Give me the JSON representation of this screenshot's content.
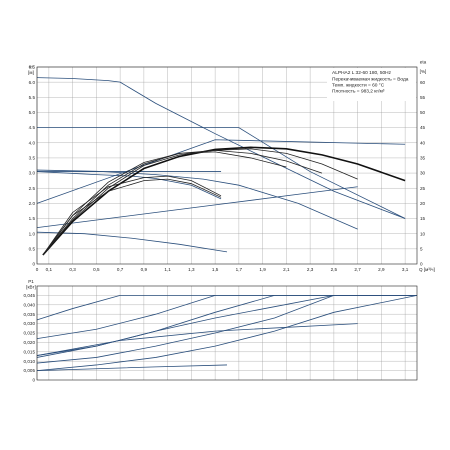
{
  "chart_data": [
    {
      "type": "line",
      "info": {
        "model": "ALPHA2 L 32-60 180, 50Hz",
        "lines": [
          "Перекачиваемая жидкость = Вода",
          "Темп. жидкости = 60 °C",
          "Плотность = 983,2 кг/м³"
        ]
      },
      "xlabel": "Q",
      "xunit": "[м³/ч]",
      "xlim": [
        0,
        3.2
      ],
      "x_ticks": [
        "0",
        "0,1",
        "0,3",
        "0,5",
        "0,7",
        "0,9",
        "1,1",
        "1,3",
        "1,5",
        "1,7",
        "1,9",
        "2,1",
        "2,3",
        "2,5",
        "2,7",
        "2,9",
        "3,1",
        "Q [м³/ч]"
      ],
      "ylabel_left": "H",
      "yunit_left": "[м]",
      "ylim_left": [
        0,
        6.5
      ],
      "y_ticks_left": [
        "0",
        "0.5",
        "1.0",
        "1.5",
        "2.0",
        "2.5",
        "3.0",
        "3.5",
        "4.0",
        "4.5",
        "5.0",
        "5.5",
        "6.0",
        "6.5"
      ],
      "ylabel_right": "eta",
      "yunit_right": "[%]",
      "ylim_right": [
        0,
        65
      ],
      "y_ticks_right": [
        "0",
        "5",
        "10",
        "15",
        "20",
        "25",
        "30",
        "35",
        "40",
        "45",
        "50",
        "55",
        "60"
      ],
      "grid": true,
      "head_series": [
        {
          "x": [
            0,
            0.3,
            0.6,
            0.7,
            1.0,
            1.5,
            2.0,
            2.5,
            3.1
          ],
          "y": [
            6.15,
            6.12,
            6.05,
            6.0,
            5.3,
            4.3,
            3.35,
            2.4,
            1.5
          ]
        },
        {
          "x": [
            0,
            1.0,
            1.7,
            2.3,
            3.1
          ],
          "y": [
            4.5,
            4.5,
            4.5,
            3.05,
            1.5
          ]
        },
        {
          "x": [
            0,
            0.5,
            1.0,
            1.4,
            1.7,
            2.2,
            2.7
          ],
          "y": [
            3.1,
            3.06,
            2.95,
            2.8,
            2.6,
            2.0,
            1.15
          ]
        },
        {
          "x": [
            0,
            0.5,
            0.8,
            1.0,
            1.3,
            1.55
          ],
          "y": [
            3.05,
            2.95,
            2.9,
            2.82,
            2.6,
            2.15
          ]
        },
        {
          "x": [
            0,
            0.4,
            0.8,
            1.2,
            1.6
          ],
          "y": [
            1.05,
            1.0,
            0.85,
            0.65,
            0.4
          ]
        },
        {
          "x": [
            0,
            0.5,
            1.0,
            1.55
          ],
          "y": [
            3.05,
            3.05,
            3.05,
            3.05
          ]
        }
      ],
      "efficiency_series": [
        {
          "x": [
            0.05,
            0.3,
            0.6,
            0.9,
            1.2,
            1.5,
            1.8,
            2.1,
            2.4,
            2.7,
            3.1
          ],
          "y": [
            3,
            14,
            24,
            31.5,
            35.5,
            37.8,
            38.5,
            38,
            36,
            33,
            27.5
          ]
        },
        {
          "x": [
            0.05,
            0.3,
            0.6,
            0.9,
            1.2,
            1.5,
            1.8,
            2.1,
            2.4,
            2.7
          ],
          "y": [
            3,
            14.5,
            25,
            32.5,
            36,
            37.5,
            38,
            36.5,
            33,
            28
          ]
        },
        {
          "x": [
            0.05,
            0.3,
            0.6,
            0.9,
            1.2,
            1.5,
            1.8,
            2.1,
            2.4
          ],
          "y": [
            3,
            15,
            26,
            33,
            36.5,
            37.5,
            36.5,
            34,
            30
          ]
        },
        {
          "x": [
            0.05,
            0.3,
            0.6,
            0.9,
            1.2,
            1.5,
            1.8,
            2.1
          ],
          "y": [
            3,
            16,
            27,
            33.5,
            36.5,
            37,
            35,
            32
          ]
        },
        {
          "x": [
            0.05,
            0.3,
            0.6,
            0.9,
            1.1,
            1.3,
            1.55
          ],
          "y": [
            3,
            17,
            25.5,
            28.5,
            29,
            27.5,
            22.5
          ]
        },
        {
          "x": [
            0.05,
            0.3,
            0.6,
            0.9,
            1.1,
            1.3,
            1.55
          ],
          "y": [
            3,
            16,
            24,
            27.5,
            28,
            26.5,
            22
          ]
        }
      ],
      "head_efficiency_series": [
        {
          "x": [
            0,
            1.5,
            3.1
          ],
          "y": [
            2.0,
            4.1,
            3.95
          ]
        },
        {
          "x": [
            0,
            0.7,
            1.5,
            2.2,
            2.7
          ],
          "y": [
            1.2,
            1.55,
            1.95,
            2.3,
            2.55
          ]
        }
      ]
    },
    {
      "type": "line",
      "ylabel": "P1",
      "yunit": "[кВт]",
      "ylim": [
        0,
        0.05
      ],
      "y_ticks": [
        "0",
        "0,005",
        "0,010",
        "0,015",
        "0,020",
        "0,025",
        "0,030",
        "0,035",
        "0,040",
        "0,045"
      ],
      "xlim": [
        0,
        3.2
      ],
      "grid": true,
      "series": [
        {
          "x": [
            0,
            0.3,
            0.7,
            3.2
          ],
          "y": [
            0.032,
            0.038,
            0.045,
            0.045
          ]
        },
        {
          "x": [
            0,
            0.5,
            1.0,
            1.5,
            3.2
          ],
          "y": [
            0.022,
            0.027,
            0.035,
            0.045,
            0.045
          ]
        },
        {
          "x": [
            0,
            0.5,
            1.0,
            1.5,
            2.0,
            3.2
          ],
          "y": [
            0.013,
            0.018,
            0.026,
            0.036,
            0.045,
            0.045
          ]
        },
        {
          "x": [
            0,
            0.5,
            1.0,
            1.5,
            2.0,
            2.5,
            3.2
          ],
          "y": [
            0.009,
            0.012,
            0.018,
            0.025,
            0.033,
            0.045,
            0.045
          ]
        },
        {
          "x": [
            0,
            0.5,
            1.0,
            1.5,
            2.0,
            2.5,
            3.2
          ],
          "y": [
            0.005,
            0.008,
            0.012,
            0.018,
            0.026,
            0.036,
            0.045
          ]
        },
        {
          "x": [
            0,
            0.7,
            1.5,
            2.7
          ],
          "y": [
            0.013,
            0.021,
            0.026,
            0.03
          ]
        },
        {
          "x": [
            0,
            0.5,
            1.0,
            1.6
          ],
          "y": [
            0.005,
            0.006,
            0.007,
            0.008
          ]
        },
        {
          "x": [
            0,
            0.5,
            1.0,
            1.5,
            2.0,
            2.5,
            3.2
          ],
          "y": [
            0.012,
            0.018,
            0.026,
            0.033,
            0.039,
            0.045,
            0.045
          ]
        }
      ]
    }
  ]
}
